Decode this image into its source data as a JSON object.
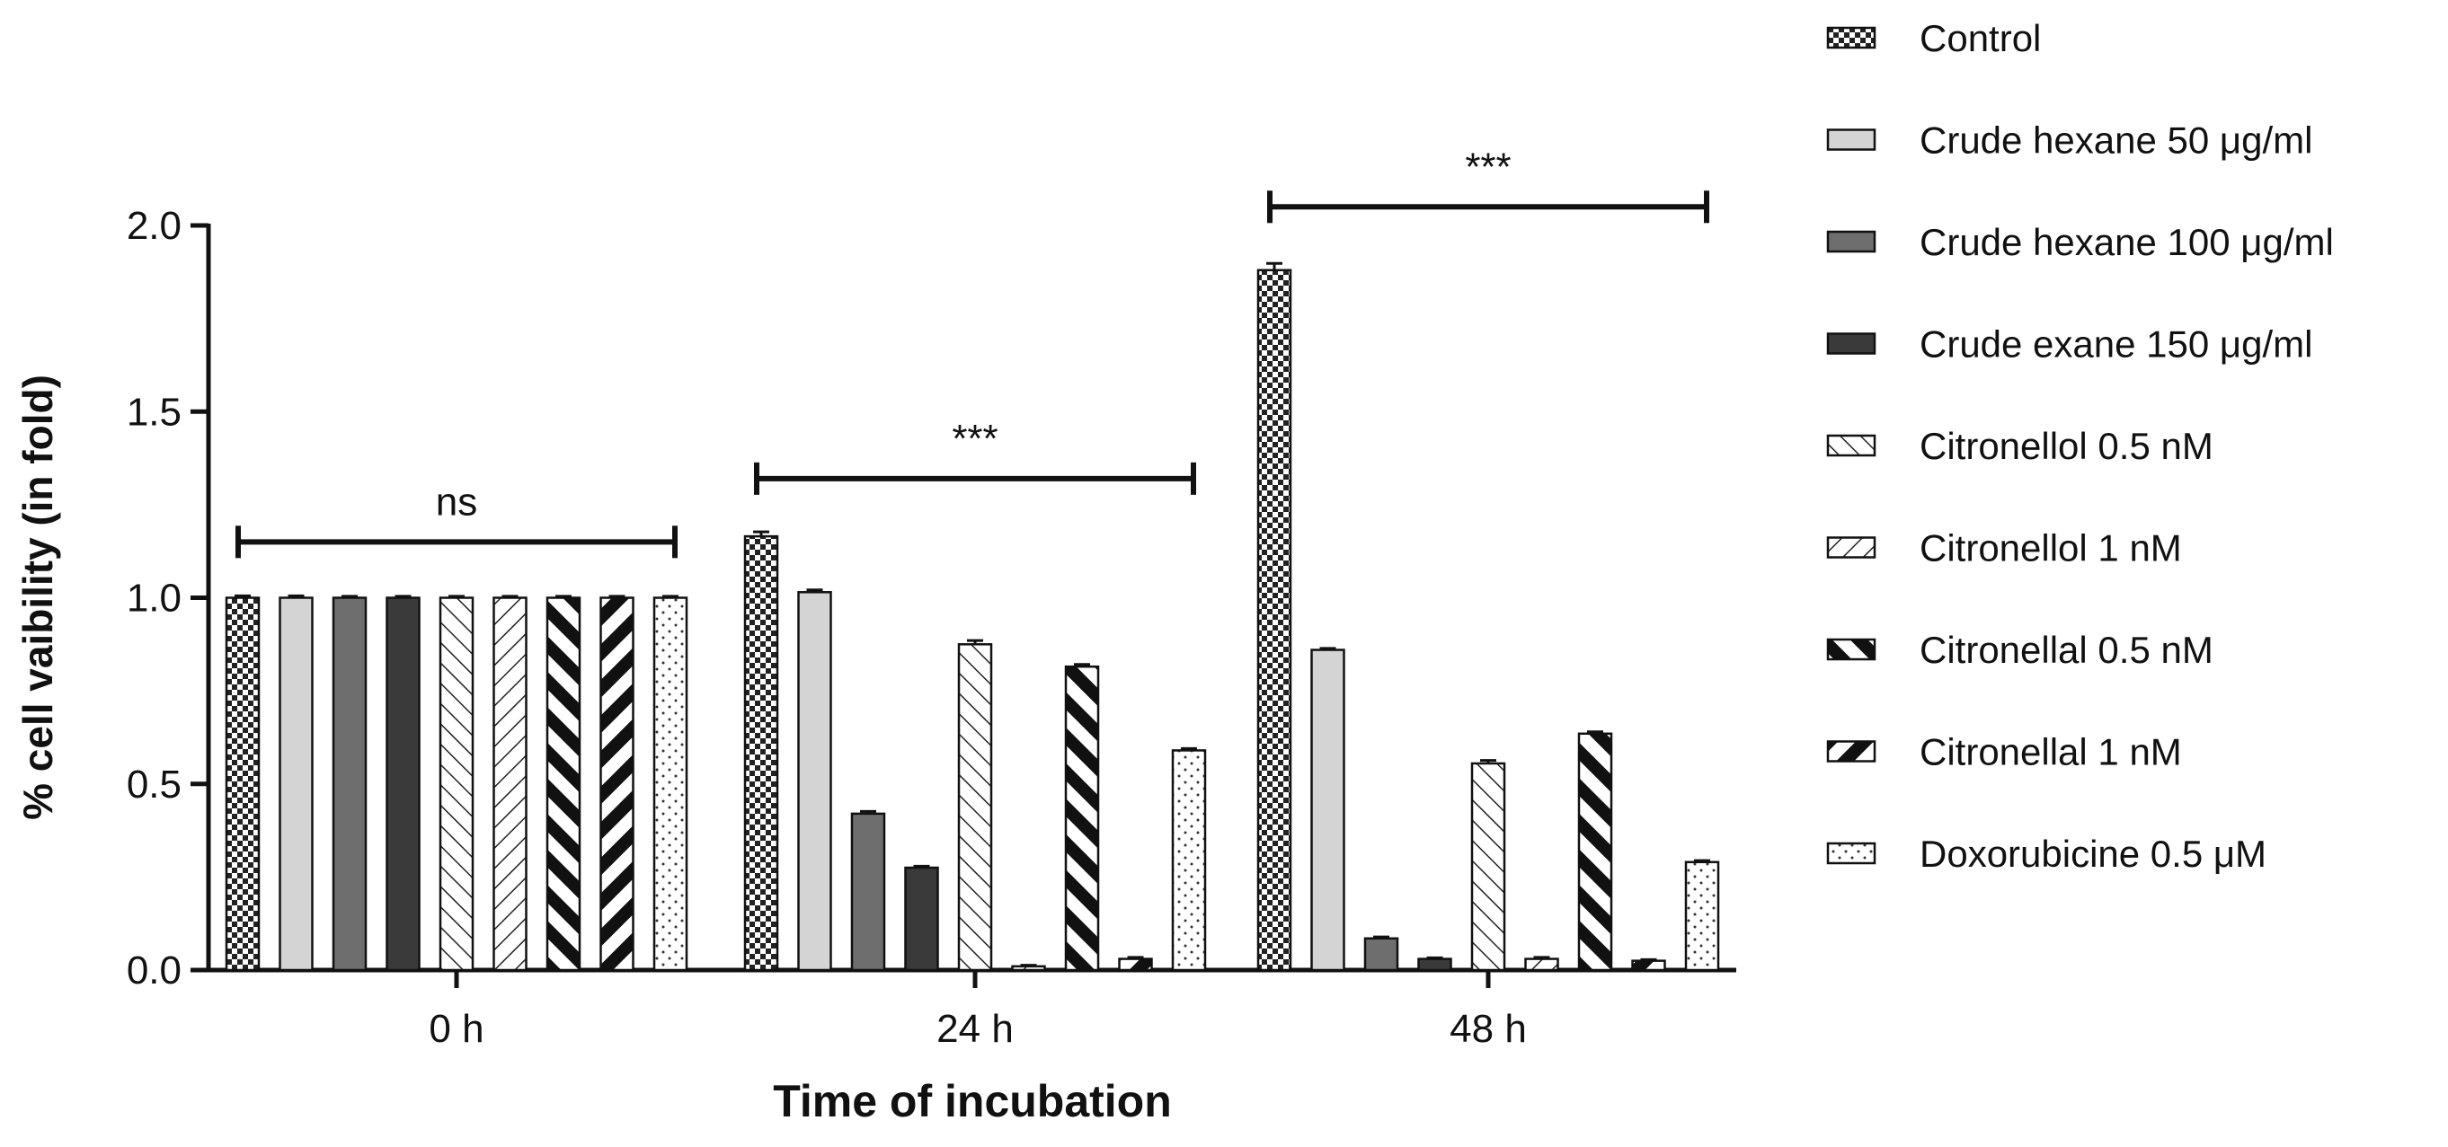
{
  "chart_data": {
    "type": "bar",
    "title": "",
    "xlabel": "Time of incubation",
    "ylabel": "% cell vaibility (in fold)",
    "ylim": [
      0,
      2.0
    ],
    "yticks": [
      "0.0",
      "0.5",
      "1.0",
      "1.5",
      "2.0"
    ],
    "ytick_values": [
      0,
      0.5,
      1.0,
      1.5,
      2.0
    ],
    "categories": [
      "0 h",
      "24 h",
      "48 h"
    ],
    "legend_position": "right",
    "series": [
      {
        "name": "Control",
        "pattern": "checker",
        "color": "#222222",
        "values": [
          1.0,
          1.165,
          1.88
        ],
        "errors": [
          0.005,
          0.012,
          0.018
        ]
      },
      {
        "name": "Crude hexane 50 μg/ml",
        "pattern": "solid",
        "color": "#d4d4d4",
        "values": [
          1.0,
          1.015,
          0.86
        ],
        "errors": [
          0.005,
          0.006,
          0.004
        ]
      },
      {
        "name": "Crude hexane 100 μg/ml",
        "pattern": "solid",
        "color": "#6e6e6e",
        "values": [
          1.0,
          0.42,
          0.085
        ],
        "errors": [
          0.004,
          0.006,
          0.004
        ]
      },
      {
        "name": "Crude exane 150 μg/ml",
        "pattern": "solid",
        "color": "#3a3a3a",
        "values": [
          1.0,
          0.275,
          0.03
        ],
        "errors": [
          0.004,
          0.004,
          0.003
        ]
      },
      {
        "name": "Citronellol 0.5 nM",
        "pattern": "hatch-back",
        "color": "#222222",
        "values": [
          1.0,
          0.875,
          0.555
        ],
        "errors": [
          0.004,
          0.01,
          0.008
        ]
      },
      {
        "name": "Citronellol 1 nM",
        "pattern": "hatch-fwd",
        "color": "#222222",
        "values": [
          1.0,
          0.01,
          0.03
        ],
        "errors": [
          0.004,
          0.003,
          0.004
        ]
      },
      {
        "name": "Citronellal 0.5 nM",
        "pattern": "thick-back",
        "color": "#111111",
        "values": [
          1.0,
          0.815,
          0.635
        ],
        "errors": [
          0.004,
          0.006,
          0.005
        ]
      },
      {
        "name": "Citronellal 1 nM",
        "pattern": "thick-fwd",
        "color": "#111111",
        "values": [
          1.0,
          0.03,
          0.025
        ],
        "errors": [
          0.004,
          0.004,
          0.003
        ]
      },
      {
        "name": "Doxorubicine 0.5 μM",
        "pattern": "dots",
        "color": "#222222",
        "values": [
          1.0,
          0.59,
          0.29
        ],
        "errors": [
          0.004,
          0.005,
          0.004
        ]
      }
    ],
    "annotations": [
      {
        "text": "ns",
        "group_from": 0,
        "group_to": 0,
        "y": 1.15
      },
      {
        "text": "***",
        "group_from": 1,
        "group_to": 1,
        "y": 1.32
      },
      {
        "text": "***",
        "group_from": 2,
        "group_to": 2,
        "y": 2.05
      }
    ]
  }
}
